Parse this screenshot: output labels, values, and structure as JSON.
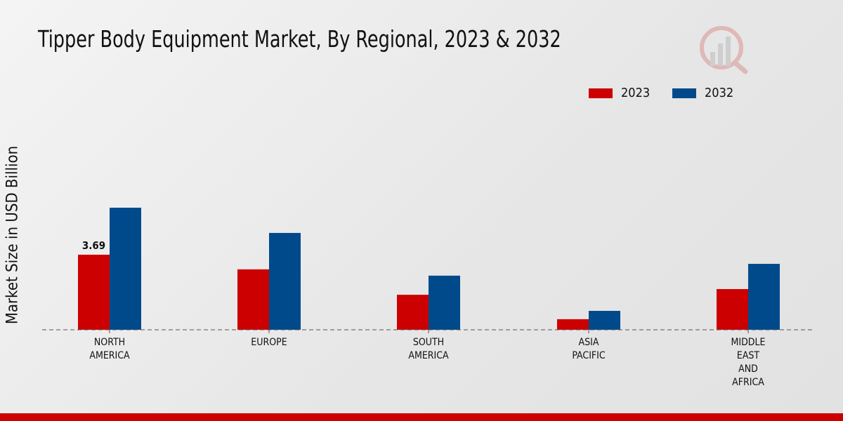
{
  "chart_data": {
    "type": "bar",
    "title": "Tipper Body Equipment Market, By Regional, 2023 & 2032",
    "xlabel": "",
    "ylabel": "Market Size in USD Billion",
    "categories": [
      [
        "NORTH",
        "AMERICA"
      ],
      [
        "EUROPE"
      ],
      [
        "SOUTH",
        "AMERICA"
      ],
      [
        "ASIA",
        "PACIFIC"
      ],
      [
        "MIDDLE",
        "EAST",
        "AND",
        "AFRICA"
      ]
    ],
    "series": [
      {
        "name": "2023",
        "color": "#cc0000",
        "values": [
          3.69,
          2.97,
          1.72,
          0.52,
          2.0
        ]
      },
      {
        "name": "2032",
        "color": "#004a8c",
        "values": [
          6.0,
          4.76,
          2.66,
          0.93,
          3.24
        ]
      }
    ],
    "data_labels": [
      {
        "series": 0,
        "index": 0,
        "text": "3.69"
      }
    ],
    "ylim": [
      0,
      7
    ],
    "grid": false,
    "legend_position": "top-right"
  }
}
